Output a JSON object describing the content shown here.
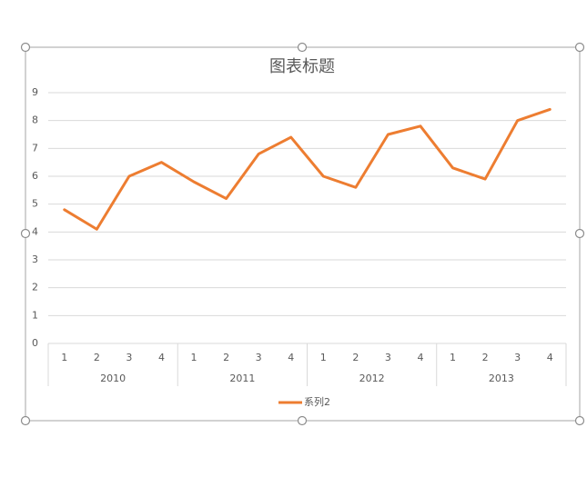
{
  "chart_data": {
    "type": "line",
    "title": "图表标题",
    "categories": [
      "1",
      "2",
      "3",
      "4",
      "1",
      "2",
      "3",
      "4",
      "1",
      "2",
      "3",
      "4",
      "1",
      "2",
      "3",
      "4"
    ],
    "category_groups": [
      "2010",
      "2011",
      "2012",
      "2013"
    ],
    "series": [
      {
        "name": "系列2",
        "color": "#ed7d31",
        "values": [
          4.8,
          4.1,
          6.0,
          6.5,
          5.8,
          5.2,
          6.8,
          7.4,
          6.0,
          5.6,
          7.5,
          7.8,
          6.3,
          5.9,
          8.0,
          8.4
        ]
      }
    ],
    "ylim": [
      0,
      9
    ],
    "yticks": [
      0,
      1,
      2,
      3,
      4,
      5,
      6,
      7,
      8,
      9
    ],
    "grid": true,
    "legend": "bottom"
  }
}
